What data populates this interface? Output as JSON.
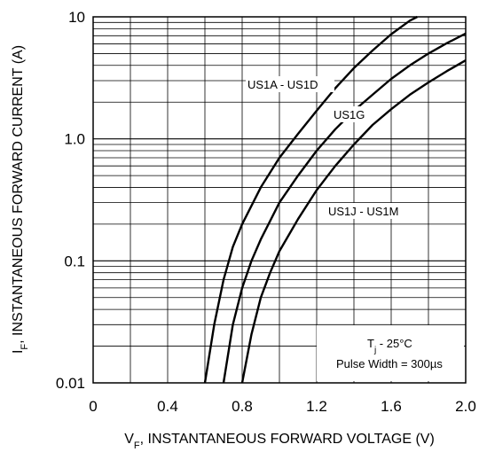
{
  "chart_data": {
    "type": "line",
    "xlabel_prefix": "V",
    "xlabel_sub": "F",
    "xlabel_rest": ", INSTANTANEOUS FORWARD VOLTAGE (V)",
    "ylabel_prefix": "I",
    "ylabel_sub": "F",
    "ylabel_rest": ", INSTANTANEOUS FORWARD CURRENT (A)",
    "x_ticks": [
      "0",
      "0.4",
      "0.8",
      "1.2",
      "1.6",
      "2.0"
    ],
    "y_ticks": [
      "0.01",
      "0.1",
      "1.0",
      "10"
    ],
    "xlim": [
      0,
      2.0
    ],
    "ylim": [
      0.01,
      10
    ],
    "y_scale": "log",
    "grid": true,
    "series": [
      {
        "name": "US1A - US1D",
        "x": [
          0.6,
          0.65,
          0.7,
          0.75,
          0.8,
          0.9,
          1.0,
          1.1,
          1.2,
          1.3,
          1.4,
          1.5,
          1.6,
          1.7,
          1.74
        ],
        "y": [
          0.01,
          0.03,
          0.07,
          0.13,
          0.2,
          0.4,
          0.7,
          1.1,
          1.7,
          2.6,
          3.8,
          5.3,
          7.2,
          9.3,
          10
        ]
      },
      {
        "name": "US1G",
        "x": [
          0.7,
          0.75,
          0.8,
          0.85,
          0.9,
          1.0,
          1.1,
          1.2,
          1.3,
          1.4,
          1.5,
          1.6,
          1.7,
          1.8,
          1.9,
          2.0
        ],
        "y": [
          0.01,
          0.03,
          0.06,
          0.1,
          0.15,
          0.3,
          0.5,
          0.8,
          1.2,
          1.7,
          2.3,
          3.1,
          4.0,
          5.0,
          6.1,
          7.3
        ]
      },
      {
        "name": "US1J - US1M",
        "x": [
          0.8,
          0.85,
          0.9,
          0.95,
          1.0,
          1.1,
          1.2,
          1.3,
          1.4,
          1.5,
          1.6,
          1.7,
          1.8,
          1.9,
          2.0
        ],
        "y": [
          0.01,
          0.025,
          0.05,
          0.08,
          0.12,
          0.22,
          0.38,
          0.6,
          0.9,
          1.3,
          1.75,
          2.3,
          2.9,
          3.6,
          4.4
        ]
      }
    ],
    "series_labels": [
      "US1A - US1D",
      "US1G",
      "US1J - US1M"
    ],
    "note_line1_prefix": "T",
    "note_line1_sub": "j",
    "note_line1_rest": " - 25°C",
    "note_line2": "Pulse Width = 300µs"
  }
}
